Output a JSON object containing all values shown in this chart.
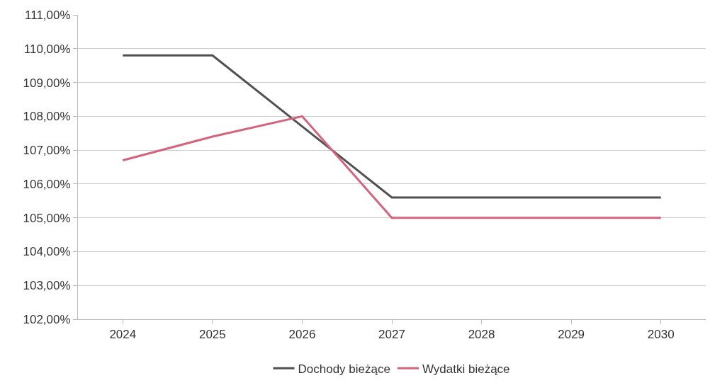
{
  "chart_data": {
    "type": "line",
    "categories": [
      "2024",
      "2025",
      "2026",
      "2027",
      "2028",
      "2029",
      "2030"
    ],
    "series": [
      {
        "name": "Dochody bieżące",
        "color": "#505050",
        "values": [
          109.8,
          109.8,
          107.7,
          105.6,
          105.6,
          105.6,
          105.6
        ]
      },
      {
        "name": "Wydatki bieżące",
        "color": "#d4647c",
        "values": [
          106.7,
          107.4,
          108.0,
          105.0,
          105.0,
          105.0,
          105.0
        ]
      }
    ],
    "ylim": [
      102,
      111
    ],
    "yticks": [
      {
        "value": 102,
        "label": "102,00%"
      },
      {
        "value": 103,
        "label": "103,00%"
      },
      {
        "value": 104,
        "label": "104,00%"
      },
      {
        "value": 105,
        "label": "105,00%"
      },
      {
        "value": 106,
        "label": "106,00%"
      },
      {
        "value": 107,
        "label": "107,00%"
      },
      {
        "value": 108,
        "label": "108,00%"
      },
      {
        "value": 109,
        "label": "109,00%"
      },
      {
        "value": 110,
        "label": "110,00%"
      },
      {
        "value": 111,
        "label": "111,00%"
      }
    ],
    "grid": "y",
    "legend": "bottom",
    "marker": "none",
    "line_style": "solid"
  }
}
